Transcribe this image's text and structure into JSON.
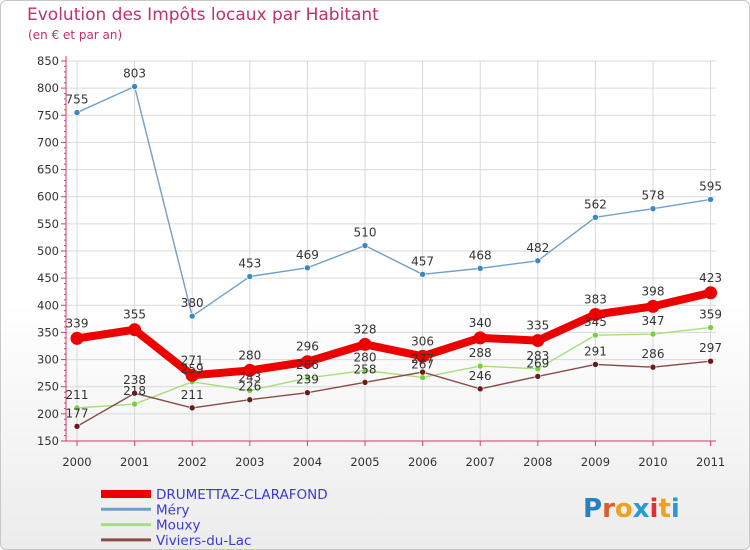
{
  "header": {
    "title": "Evolution des Impôts locaux par Habitant",
    "subtitle": "(en € et par an)"
  },
  "logo": {
    "text": "Proxiti",
    "letter_colors": [
      "#2a7fc4",
      "#e05a2a",
      "#f0a020",
      "#2a9ad6",
      "#e03030",
      "#f0a020",
      "#2a9ad6"
    ]
  },
  "colors": {
    "axis": "#d23c6e",
    "grid": "#d9d9d9",
    "label": "#333333",
    "legend_text": "#3a3ad8"
  },
  "chart_data": {
    "type": "line",
    "title": "Evolution des Impôts locaux par Habitant",
    "subtitle": "(en € et par an)",
    "xlabel": "",
    "ylabel": "",
    "categories": [
      "2000",
      "2001",
      "2002",
      "2003",
      "2004",
      "2005",
      "2006",
      "2007",
      "2008",
      "2009",
      "2010",
      "2011"
    ],
    "ylim": [
      150,
      850
    ],
    "yticks": [
      150,
      200,
      250,
      300,
      350,
      400,
      450,
      500,
      550,
      600,
      650,
      700,
      750,
      800,
      850
    ],
    "grid": true,
    "legend_position": "bottom-left",
    "series": [
      {
        "name": "Méry",
        "color": "#6fa0cc",
        "marker": "#3b87c4",
        "width": "thin",
        "values": [
          755,
          803,
          380,
          453,
          469,
          510,
          457,
          468,
          482,
          562,
          578,
          595
        ]
      },
      {
        "name": "Mouxy",
        "color": "#a6df7a",
        "marker": "#7ccc46",
        "width": "thin",
        "values": [
          211,
          218,
          259,
          243,
          266,
          280,
          267,
          288,
          283,
          345,
          347,
          359
        ]
      },
      {
        "name": "Viviers-du-Lac",
        "color": "#8a4b4b",
        "marker": "#6a1a1a",
        "width": "thin",
        "values": [
          177,
          238,
          211,
          226,
          239,
          258,
          277,
          246,
          269,
          291,
          286,
          297
        ]
      },
      {
        "name": "DRUMETTAZ-CLARAFOND",
        "color": "#ee0000",
        "marker": "#ee0000",
        "width": "thick",
        "values": [
          339,
          355,
          271,
          280,
          296,
          328,
          306,
          340,
          335,
          383,
          398,
          423
        ]
      }
    ],
    "legend_order": [
      "DRUMETTAZ-CLARAFOND",
      "Méry",
      "Mouxy",
      "Viviers-du-Lac"
    ]
  }
}
